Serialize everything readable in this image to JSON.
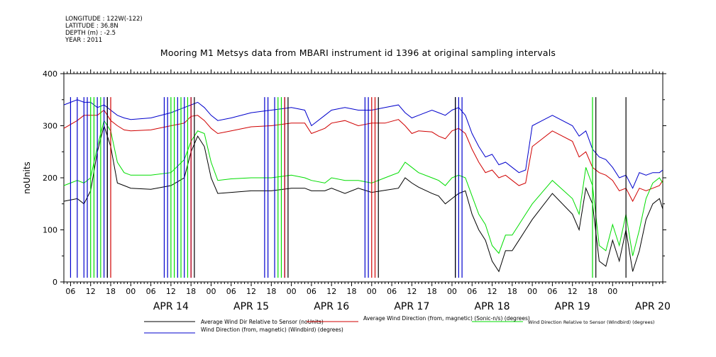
{
  "header": {
    "meta_lines": [
      "LONGITUDE : 122W(-122)",
      "LATITUDE : 36.8N",
      "DEPTH (m) : -2.5",
      "YEAR : 2011"
    ],
    "title": "Mooring M1 Metsys data from MBARI instrument id 1396 at original sampling intervals"
  },
  "chart_data": {
    "type": "line",
    "title": "Mooring M1 Metsys data from MBARI instrument id 1396 at original sampling intervals",
    "ylabel": "noUnits",
    "xlabel": "",
    "ylim": [
      0,
      400
    ],
    "yticks": [
      0,
      100,
      200,
      300,
      400
    ],
    "x_unit": "hours since APR 13 00:00 (2011)",
    "xlim": [
      4,
      183
    ],
    "hour_tick_labels": [
      "06",
      "12",
      "18",
      "00",
      "06",
      "12",
      "18",
      "00",
      "06",
      "12",
      "18",
      "00",
      "06",
      "12",
      "18",
      "00",
      "06",
      "12",
      "18",
      "00",
      "06",
      "12",
      "18",
      "00",
      "06",
      "12",
      "18",
      "00"
    ],
    "day_labels": [
      "APR 14",
      "APR 15",
      "APR 16",
      "APR 17",
      "APR 18",
      "APR 19",
      "APR 20"
    ],
    "grid": false,
    "legend_position": "bottom",
    "series": [
      {
        "name": "Average Wind Dir Relative to Sensor (noUnits)",
        "color": "#000000",
        "points": [
          [
            4,
            155
          ],
          [
            8,
            160
          ],
          [
            10,
            150
          ],
          [
            12,
            175
          ],
          [
            14,
            250
          ],
          [
            16,
            300
          ],
          [
            18,
            260
          ],
          [
            20,
            190
          ],
          [
            22,
            185
          ],
          [
            24,
            180
          ],
          [
            30,
            178
          ],
          [
            36,
            185
          ],
          [
            40,
            200
          ],
          [
            42,
            250
          ],
          [
            44,
            280
          ],
          [
            46,
            260
          ],
          [
            48,
            200
          ],
          [
            50,
            170
          ],
          [
            54,
            172
          ],
          [
            60,
            175
          ],
          [
            66,
            175
          ],
          [
            72,
            180
          ],
          [
            76,
            180
          ],
          [
            78,
            175
          ],
          [
            82,
            175
          ],
          [
            84,
            180
          ],
          [
            88,
            170
          ],
          [
            92,
            180
          ],
          [
            96,
            172
          ],
          [
            100,
            176
          ],
          [
            104,
            180
          ],
          [
            106,
            200
          ],
          [
            108,
            190
          ],
          [
            110,
            182
          ],
          [
            114,
            170
          ],
          [
            116,
            165
          ],
          [
            118,
            150
          ],
          [
            120,
            160
          ],
          [
            122,
            170
          ],
          [
            124,
            175
          ],
          [
            126,
            130
          ],
          [
            128,
            100
          ],
          [
            130,
            80
          ],
          [
            132,
            40
          ],
          [
            134,
            20
          ],
          [
            136,
            60
          ],
          [
            138,
            60
          ],
          [
            140,
            80
          ],
          [
            142,
            100
          ],
          [
            144,
            120
          ],
          [
            150,
            170
          ],
          [
            156,
            130
          ],
          [
            158,
            100
          ],
          [
            160,
            180
          ],
          [
            162,
            150
          ],
          [
            164,
            40
          ],
          [
            166,
            30
          ],
          [
            168,
            80
          ],
          [
            170,
            40
          ],
          [
            172,
            100
          ],
          [
            174,
            20
          ],
          [
            176,
            60
          ],
          [
            178,
            120
          ],
          [
            180,
            150
          ],
          [
            182,
            160
          ],
          [
            183,
            140
          ]
        ]
      },
      {
        "name": "Average Wind Direction (from, magnetic) (Sonic-n/s) (degrees)",
        "color": "#d00000",
        "points": [
          [
            4,
            295
          ],
          [
            8,
            310
          ],
          [
            10,
            320
          ],
          [
            12,
            320
          ],
          [
            14,
            320
          ],
          [
            16,
            330
          ],
          [
            18,
            310
          ],
          [
            20,
            300
          ],
          [
            22,
            292
          ],
          [
            24,
            290
          ],
          [
            30,
            292
          ],
          [
            36,
            300
          ],
          [
            40,
            305
          ],
          [
            42,
            318
          ],
          [
            44,
            320
          ],
          [
            46,
            310
          ],
          [
            48,
            295
          ],
          [
            50,
            285
          ],
          [
            54,
            290
          ],
          [
            60,
            298
          ],
          [
            66,
            300
          ],
          [
            72,
            305
          ],
          [
            76,
            305
          ],
          [
            78,
            285
          ],
          [
            82,
            295
          ],
          [
            84,
            305
          ],
          [
            88,
            310
          ],
          [
            92,
            300
          ],
          [
            96,
            305
          ],
          [
            100,
            305
          ],
          [
            104,
            312
          ],
          [
            106,
            300
          ],
          [
            108,
            285
          ],
          [
            110,
            290
          ],
          [
            114,
            288
          ],
          [
            116,
            280
          ],
          [
            118,
            275
          ],
          [
            120,
            290
          ],
          [
            122,
            295
          ],
          [
            124,
            285
          ],
          [
            126,
            255
          ],
          [
            128,
            230
          ],
          [
            130,
            210
          ],
          [
            132,
            215
          ],
          [
            134,
            200
          ],
          [
            136,
            205
          ],
          [
            138,
            195
          ],
          [
            140,
            185
          ],
          [
            142,
            190
          ],
          [
            144,
            260
          ],
          [
            150,
            290
          ],
          [
            156,
            270
          ],
          [
            158,
            240
          ],
          [
            160,
            250
          ],
          [
            162,
            220
          ],
          [
            164,
            210
          ],
          [
            166,
            205
          ],
          [
            168,
            195
          ],
          [
            170,
            175
          ],
          [
            172,
            180
          ],
          [
            174,
            155
          ],
          [
            176,
            180
          ],
          [
            178,
            175
          ],
          [
            180,
            180
          ],
          [
            182,
            185
          ],
          [
            183,
            195
          ]
        ]
      },
      {
        "name": "Wind Direction Relative to Sensor (Windbird) (degrees)",
        "color": "#00dd00",
        "points": [
          [
            4,
            185
          ],
          [
            8,
            195
          ],
          [
            10,
            190
          ],
          [
            12,
            200
          ],
          [
            14,
            260
          ],
          [
            16,
            310
          ],
          [
            18,
            290
          ],
          [
            20,
            230
          ],
          [
            22,
            210
          ],
          [
            24,
            205
          ],
          [
            30,
            205
          ],
          [
            36,
            210
          ],
          [
            40,
            235
          ],
          [
            42,
            270
          ],
          [
            44,
            290
          ],
          [
            46,
            285
          ],
          [
            48,
            230
          ],
          [
            50,
            195
          ],
          [
            54,
            198
          ],
          [
            60,
            200
          ],
          [
            66,
            200
          ],
          [
            72,
            205
          ],
          [
            76,
            200
          ],
          [
            78,
            195
          ],
          [
            82,
            190
          ],
          [
            84,
            200
          ],
          [
            88,
            195
          ],
          [
            92,
            195
          ],
          [
            96,
            190
          ],
          [
            100,
            200
          ],
          [
            104,
            210
          ],
          [
            106,
            230
          ],
          [
            108,
            220
          ],
          [
            110,
            210
          ],
          [
            114,
            200
          ],
          [
            116,
            195
          ],
          [
            118,
            185
          ],
          [
            120,
            200
          ],
          [
            122,
            205
          ],
          [
            124,
            200
          ],
          [
            126,
            165
          ],
          [
            128,
            130
          ],
          [
            130,
            110
          ],
          [
            132,
            70
          ],
          [
            134,
            55
          ],
          [
            136,
            90
          ],
          [
            138,
            90
          ],
          [
            140,
            110
          ],
          [
            142,
            130
          ],
          [
            144,
            150
          ],
          [
            150,
            195
          ],
          [
            156,
            160
          ],
          [
            158,
            130
          ],
          [
            160,
            220
          ],
          [
            162,
            185
          ],
          [
            164,
            70
          ],
          [
            166,
            60
          ],
          [
            168,
            110
          ],
          [
            170,
            70
          ],
          [
            172,
            130
          ],
          [
            174,
            50
          ],
          [
            176,
            100
          ],
          [
            178,
            160
          ],
          [
            180,
            190
          ],
          [
            182,
            200
          ],
          [
            183,
            190
          ]
        ]
      },
      {
        "name": "Wind Direction (from, magnetic) (Windbird) (degrees)",
        "color": "#0000cc",
        "points": [
          [
            4,
            340
          ],
          [
            8,
            350
          ],
          [
            10,
            345
          ],
          [
            12,
            345
          ],
          [
            14,
            335
          ],
          [
            16,
            340
          ],
          [
            18,
            330
          ],
          [
            20,
            320
          ],
          [
            22,
            315
          ],
          [
            24,
            312
          ],
          [
            30,
            315
          ],
          [
            36,
            325
          ],
          [
            40,
            335
          ],
          [
            42,
            340
          ],
          [
            44,
            345
          ],
          [
            46,
            335
          ],
          [
            48,
            320
          ],
          [
            50,
            310
          ],
          [
            54,
            315
          ],
          [
            60,
            325
          ],
          [
            66,
            330
          ],
          [
            72,
            335
          ],
          [
            76,
            330
          ],
          [
            78,
            300
          ],
          [
            82,
            320
          ],
          [
            84,
            330
          ],
          [
            88,
            335
          ],
          [
            92,
            330
          ],
          [
            96,
            330
          ],
          [
            100,
            335
          ],
          [
            104,
            340
          ],
          [
            106,
            325
          ],
          [
            108,
            315
          ],
          [
            110,
            320
          ],
          [
            114,
            330
          ],
          [
            116,
            325
          ],
          [
            118,
            320
          ],
          [
            120,
            330
          ],
          [
            122,
            335
          ],
          [
            124,
            320
          ],
          [
            126,
            285
          ],
          [
            128,
            260
          ],
          [
            130,
            240
          ],
          [
            132,
            245
          ],
          [
            134,
            225
          ],
          [
            136,
            230
          ],
          [
            138,
            220
          ],
          [
            140,
            210
          ],
          [
            142,
            215
          ],
          [
            144,
            300
          ],
          [
            150,
            320
          ],
          [
            156,
            300
          ],
          [
            158,
            280
          ],
          [
            160,
            290
          ],
          [
            162,
            255
          ],
          [
            164,
            240
          ],
          [
            166,
            235
          ],
          [
            168,
            220
          ],
          [
            170,
            200
          ],
          [
            172,
            205
          ],
          [
            174,
            180
          ],
          [
            176,
            210
          ],
          [
            178,
            205
          ],
          [
            180,
            210
          ],
          [
            182,
            210
          ],
          [
            183,
            215
          ]
        ]
      }
    ],
    "spikes": [
      {
        "color": "#0000cc",
        "hours": [
          6,
          8,
          10,
          11,
          14,
          16,
          17,
          34,
          35,
          38,
          40,
          42,
          64,
          65,
          67,
          70,
          94,
          95,
          121,
          122,
          123
        ]
      },
      {
        "color": "#00dd00",
        "hours": [
          12,
          13,
          15,
          36,
          37,
          39,
          41,
          68,
          69,
          162
        ]
      },
      {
        "color": "#d00000",
        "hours": [
          18,
          42,
          70,
          96,
          97
        ]
      },
      {
        "color": "#000000",
        "hours": [
          17,
          43,
          71,
          98,
          121,
          163,
          172
        ]
      }
    ]
  }
}
